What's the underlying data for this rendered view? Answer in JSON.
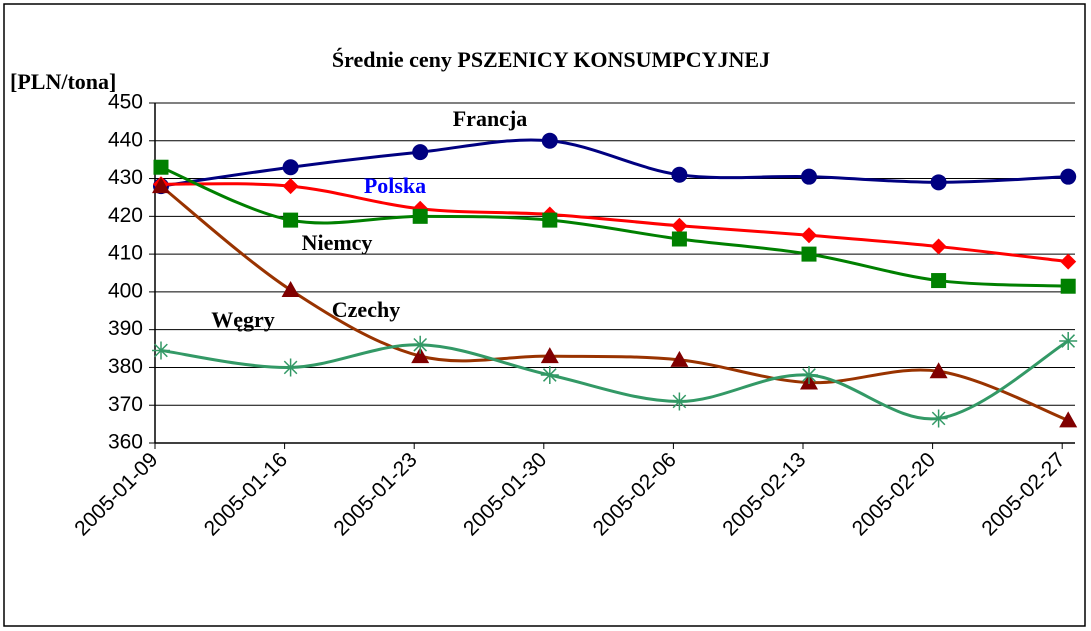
{
  "chart_data": {
    "type": "line",
    "title": "Średnie ceny PSZENICY KONSUMPCYJNEJ",
    "y_label": "[PLN/tona]",
    "categories": [
      "2005-01-09",
      "2005-01-16",
      "2005-01-23",
      "2005-01-30",
      "2005-02-06",
      "2005-02-13",
      "2005-02-20",
      "2005-02-27"
    ],
    "series": [
      {
        "name": "Francja",
        "color": "#000080",
        "marker": "circle",
        "values": [
          428,
          433,
          437,
          440,
          431,
          430.5,
          429,
          430.5
        ]
      },
      {
        "name": "Polska",
        "color": "#ff0000",
        "marker": "diamond",
        "values": [
          428.5,
          428,
          422,
          420.5,
          417.5,
          415,
          412,
          408
        ]
      },
      {
        "name": "Niemcy",
        "color": "#008000",
        "marker": "square",
        "values": [
          433,
          419,
          420,
          419,
          414,
          410,
          403,
          401.5
        ]
      },
      {
        "name": "Czechy",
        "color": "#993300",
        "marker": "triangle",
        "values": [
          428,
          400.5,
          383,
          383,
          382,
          376,
          379,
          366
        ]
      },
      {
        "name": "Węgry",
        "color": "#339966",
        "marker": "asterisk",
        "values": [
          384.5,
          380,
          386,
          378,
          371,
          378,
          366.5,
          387
        ]
      }
    ],
    "ylim": [
      360,
      450
    ],
    "yticks": [
      360,
      370,
      380,
      390,
      400,
      410,
      420,
      430,
      440,
      450
    ],
    "grid": true
  }
}
